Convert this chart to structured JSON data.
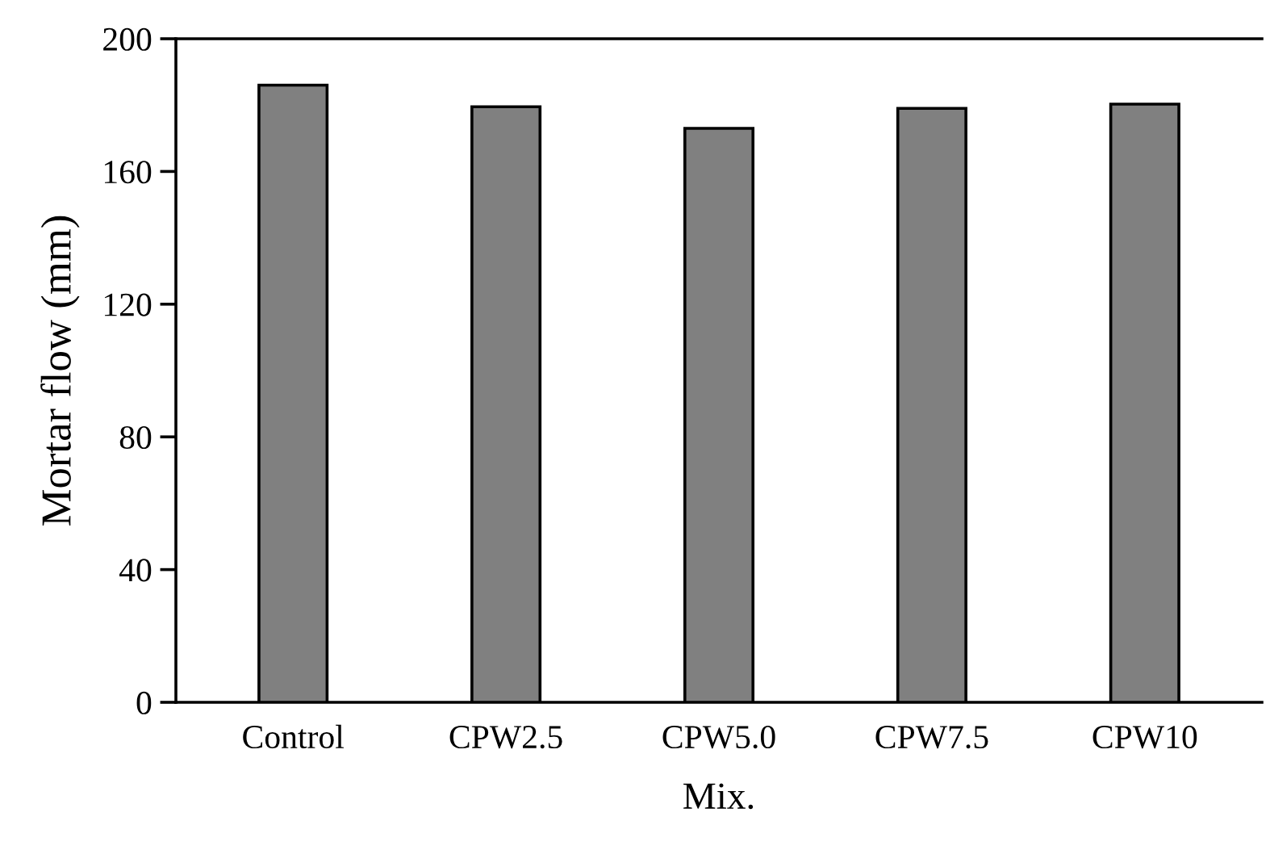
{
  "chart_data": {
    "type": "bar",
    "categories": [
      "Control",
      "CPW2.5",
      "CPW5.0",
      "CPW7.5",
      "CPW10"
    ],
    "values": [
      186,
      179.5,
      173,
      179,
      180.3
    ],
    "color": "#808080",
    "xlabel": "Mix.",
    "ylabel": "Mortar flow (mm)",
    "ylim": [
      0,
      200
    ],
    "yticks": [
      0,
      40,
      80,
      120,
      160,
      200
    ],
    "grid": false,
    "legend": false
  }
}
